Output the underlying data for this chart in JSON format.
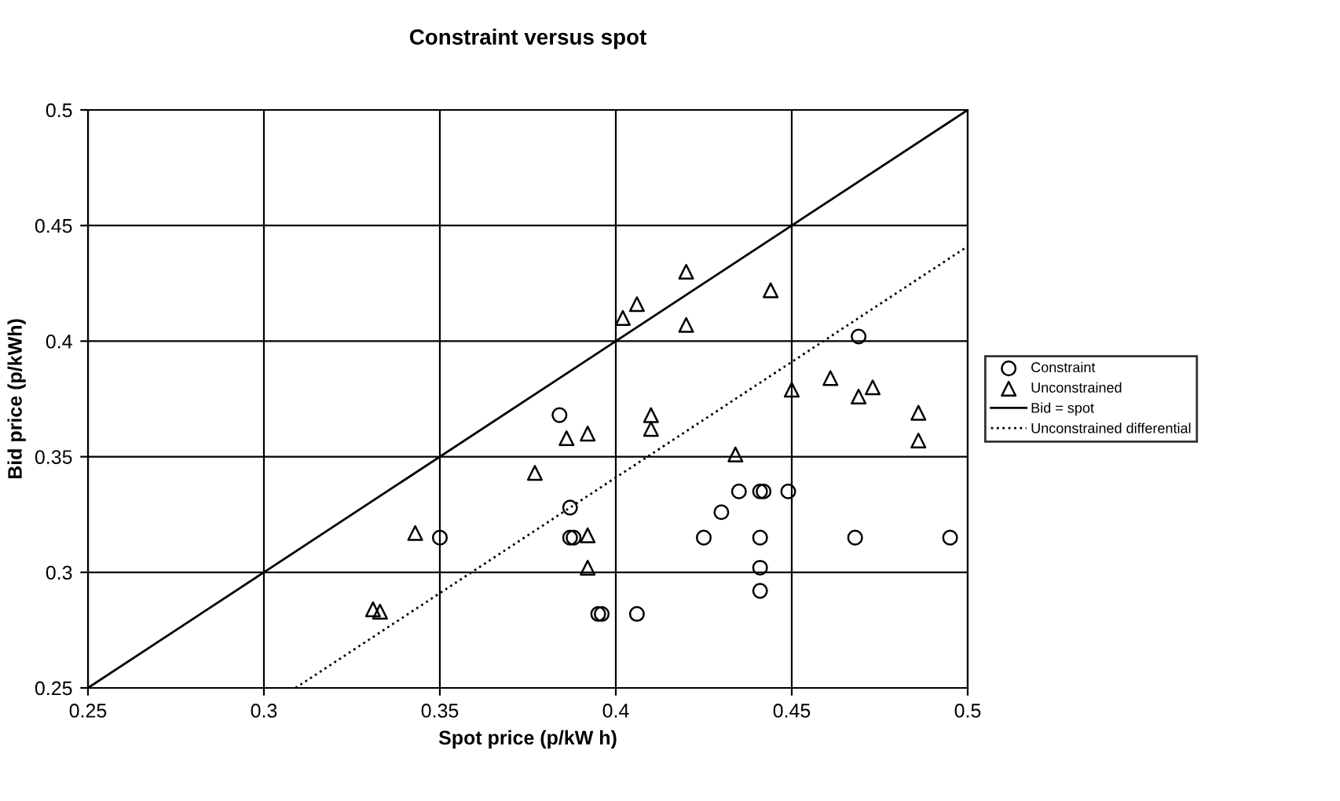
{
  "chart_data": {
    "type": "scatter",
    "title": "Constraint versus spot",
    "xlabel": "Spot price (p/kW h)",
    "ylabel": "Bid price (p/kWh)",
    "xlim": [
      0.25,
      0.5
    ],
    "ylim": [
      0.25,
      0.5
    ],
    "xticks": [
      0.25,
      0.3,
      0.35,
      0.4,
      0.45,
      0.5
    ],
    "yticks": [
      0.25,
      0.3,
      0.35,
      0.4,
      0.45,
      0.5
    ],
    "grid": true,
    "legend": "right",
    "series": [
      {
        "name": "Constraint",
        "marker": "circle",
        "color": "#000000",
        "x": [
          0.35,
          0.384,
          0.387,
          0.387,
          0.388,
          0.395,
          0.396,
          0.406,
          0.425,
          0.43,
          0.435,
          0.441,
          0.442,
          0.449,
          0.441,
          0.441,
          0.441,
          0.468,
          0.469,
          0.495
        ],
        "values": [
          0.315,
          0.368,
          0.328,
          0.315,
          0.315,
          0.282,
          0.282,
          0.282,
          0.315,
          0.326,
          0.335,
          0.335,
          0.335,
          0.335,
          0.315,
          0.302,
          0.292,
          0.315,
          0.402,
          0.315
        ]
      },
      {
        "name": "Unconstrained",
        "marker": "triangle",
        "color": "#000000",
        "x": [
          0.331,
          0.333,
          0.343,
          0.377,
          0.386,
          0.392,
          0.392,
          0.392,
          0.402,
          0.406,
          0.41,
          0.41,
          0.42,
          0.42,
          0.434,
          0.444,
          0.45,
          0.461,
          0.469,
          0.473,
          0.486,
          0.486
        ],
        "values": [
          0.284,
          0.283,
          0.317,
          0.343,
          0.358,
          0.36,
          0.316,
          0.302,
          0.41,
          0.416,
          0.368,
          0.362,
          0.43,
          0.407,
          0.351,
          0.422,
          0.379,
          0.384,
          0.376,
          0.38,
          0.369,
          0.357
        ]
      },
      {
        "name": "Bid = spot",
        "type": "line",
        "line_style": "solid",
        "color": "#000000",
        "x": [
          0.25,
          0.5
        ],
        "values": [
          0.25,
          0.5
        ]
      },
      {
        "name": "Unconstrained differential",
        "type": "line",
        "line_style": "dotted",
        "color": "#000000",
        "x": [
          0.309,
          0.5
        ],
        "values": [
          0.25,
          0.441
        ]
      }
    ]
  }
}
